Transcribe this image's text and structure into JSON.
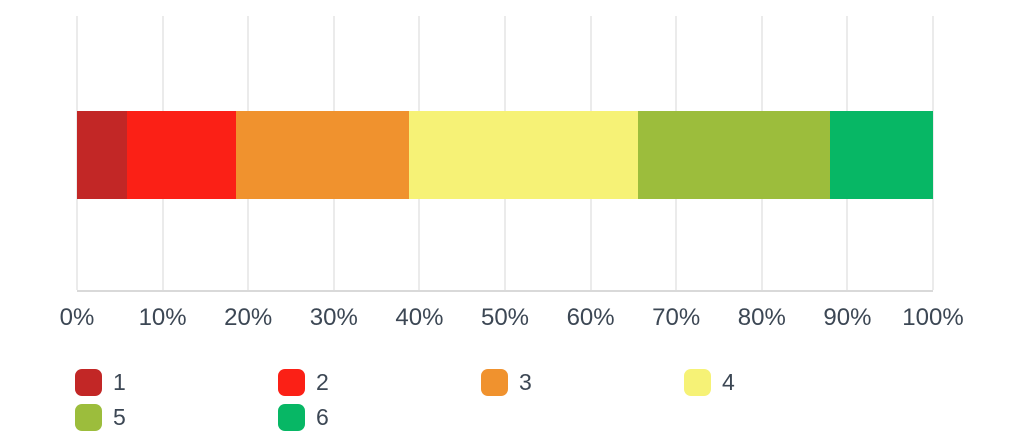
{
  "chart_data": {
    "type": "bar",
    "orientation": "horizontal-stacked",
    "title": "",
    "xlabel": "",
    "ylabel": "",
    "xlim": [
      0,
      100
    ],
    "grid": true,
    "legend_position": "bottom",
    "x_tick_labels": [
      "0%",
      "10%",
      "20%",
      "30%",
      "40%",
      "50%",
      "60%",
      "70%",
      "80%",
      "90%",
      "100%"
    ],
    "series": [
      {
        "name": "1",
        "value_pct": 5.8,
        "color": "#c22726"
      },
      {
        "name": "2",
        "value_pct": 12.8,
        "color": "#fb2016"
      },
      {
        "name": "3",
        "value_pct": 20.2,
        "color": "#f0922e"
      },
      {
        "name": "4",
        "value_pct": 26.7,
        "color": "#f6f276"
      },
      {
        "name": "5",
        "value_pct": 22.5,
        "color": "#9cbd3c"
      },
      {
        "name": "6",
        "value_pct": 12.0,
        "color": "#07b765"
      }
    ]
  },
  "colors": {
    "gridline": "#ebebeb",
    "baseline": "#d9d9d9",
    "label_text": "#3c4754",
    "background": "#ffffff"
  }
}
